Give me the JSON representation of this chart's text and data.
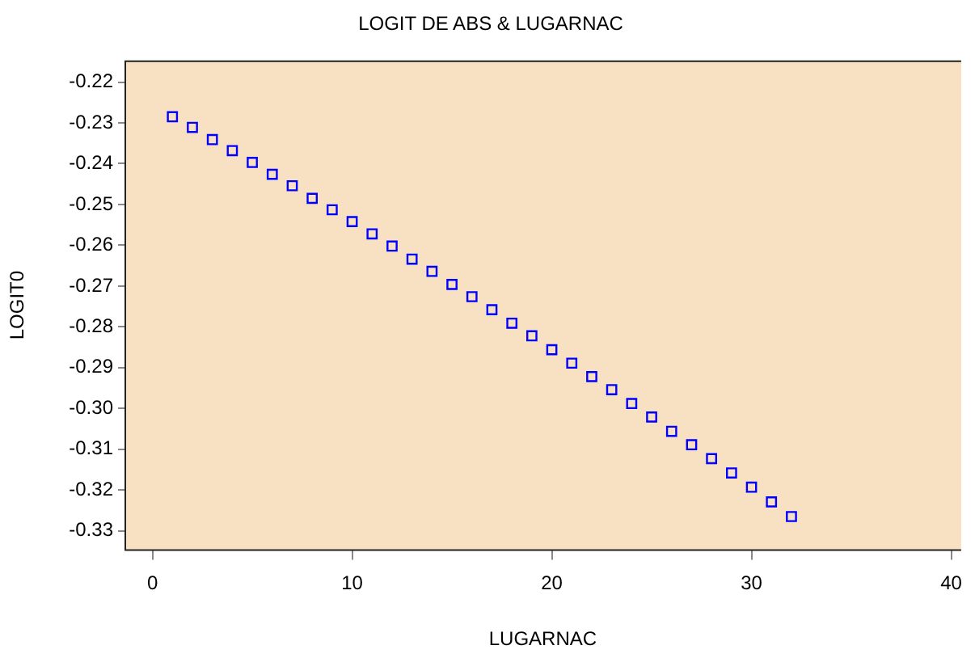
{
  "chart_data": {
    "type": "scatter",
    "title": "LOGIT DE ABS & LUGARNAC",
    "xlabel": "LUGARNAC",
    "ylabel": "LOGIT0",
    "x": [
      1,
      2,
      3,
      4,
      5,
      6,
      7,
      8,
      9,
      10,
      11,
      12,
      13,
      14,
      15,
      16,
      17,
      18,
      19,
      20,
      21,
      22,
      23,
      24,
      25,
      26,
      27,
      28,
      29,
      30,
      31,
      32
    ],
    "series": [
      {
        "color": "#0000ff",
        "values": [
          -0.2285,
          -0.2311,
          -0.2341,
          -0.2368,
          -0.2397,
          -0.2426,
          -0.2454,
          -0.2485,
          -0.2513,
          -0.2542,
          -0.2572,
          -0.2602,
          -0.2634,
          -0.2664,
          -0.2696,
          -0.2726,
          -0.2758,
          -0.2791,
          -0.2822,
          -0.2856,
          -0.2889,
          -0.2922,
          -0.2954,
          -0.2988,
          -0.3021,
          -0.3056,
          -0.3089,
          -0.3123,
          -0.3158,
          -0.3193,
          -0.3229,
          -0.3265
        ]
      }
    ],
    "marker": "square",
    "grid": false,
    "legend": false,
    "xlim": [
      -1.4,
      40.5
    ],
    "xticks": [
      0,
      10,
      20,
      30,
      40
    ],
    "ylim": [
      -0.3347,
      -0.2147
    ],
    "yticks": [
      {
        "value": -0.22,
        "label": "-0.22"
      },
      {
        "value": -0.23,
        "label": "-0.23"
      },
      {
        "value": -0.24,
        "label": "-0.24"
      },
      {
        "value": -0.25,
        "label": "-0.25"
      },
      {
        "value": -0.26,
        "label": "-0.26"
      },
      {
        "value": -0.27,
        "label": "-0.27"
      },
      {
        "value": -0.28,
        "label": "-0.28"
      },
      {
        "value": -0.29,
        "label": "-0.29"
      },
      {
        "value": -0.3,
        "label": "-0.30"
      },
      {
        "value": -0.31,
        "label": "-0.31"
      },
      {
        "value": -0.32,
        "label": "-0.32"
      },
      {
        "value": -0.33,
        "label": "-0.33"
      }
    ]
  }
}
